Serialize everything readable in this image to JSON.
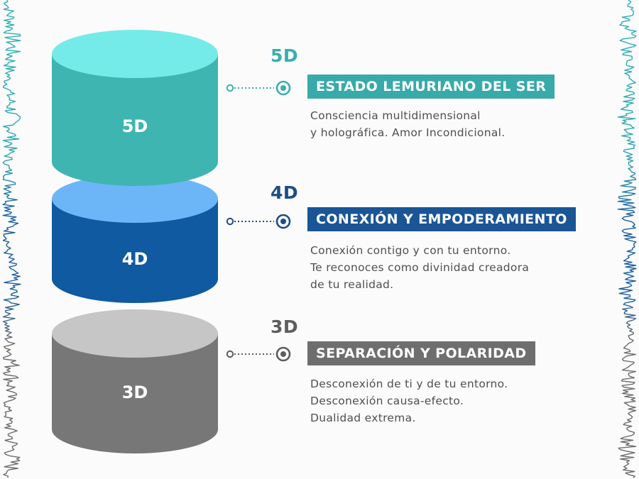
{
  "levels": [
    {
      "id": "5d",
      "cylinder_label": "5D",
      "number": "5D",
      "title": "ESTADO LEMURIANO DEL SER",
      "description": [
        "Consciencia multidimensional",
        "y holográfica.  Amor Incondicional."
      ],
      "colors": {
        "body": "#3fb5b2",
        "top": "#74ebe8",
        "text": "#3aaeb0",
        "banner": "#38aaa9"
      }
    },
    {
      "id": "4d",
      "cylinder_label": "4D",
      "number": "4D",
      "title": "CONEXIÓN Y EMPODERAMIENTO",
      "description": [
        "Conexión contigo y con tu entorno.",
        "Te reconoces como divinidad creadora",
        "de tu realidad."
      ],
      "colors": {
        "body": "#0f5aa0",
        "top": "#6cb6f8",
        "text": "#1e4d84",
        "banner": "#1a5596"
      }
    },
    {
      "id": "3d",
      "cylinder_label": "3D",
      "number": "3D",
      "title": "SEPARACIÓN Y POLARIDAD",
      "description": [
        "Desconexión de ti y de tu entorno.",
        "Desconexión causa-efecto.",
        "Dualidad extrema."
      ],
      "colors": {
        "body": "#777777",
        "top": "#c6c6c6",
        "text": "#5d5d5d",
        "banner": "#6e6e6e"
      }
    }
  ]
}
